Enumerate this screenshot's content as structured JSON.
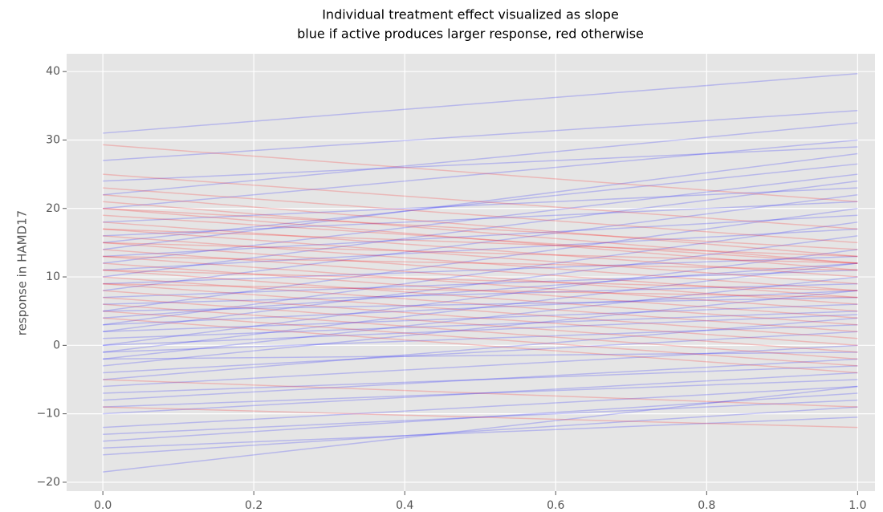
{
  "chart_data": {
    "type": "line",
    "title": [
      "Individual treatment effect visualized as slope",
      "blue if active produces larger response, red otherwise"
    ],
    "ylabel": "response in HAMD17",
    "x": [
      0,
      1
    ],
    "xlim": [
      -0.048,
      1.023
    ],
    "ylim": [
      -21.3,
      42.6
    ],
    "xticks": [
      {
        "value": 0,
        "label": "0.0"
      },
      {
        "value": 0.2,
        "label": "0.2"
      },
      {
        "value": 0.4,
        "label": "0.4"
      },
      {
        "value": 0.6,
        "label": "0.6"
      },
      {
        "value": 0.8,
        "label": "0.8"
      },
      {
        "value": 1,
        "label": "1.0"
      }
    ],
    "yticks": [
      {
        "value": -20,
        "label": "−20"
      },
      {
        "value": -10,
        "label": "−10"
      },
      0,
      10,
      20,
      30,
      40
    ],
    "grid": true,
    "alpha": 0.2,
    "series": [
      {
        "color": "#0000ff",
        "values": [
          31,
          39.7
        ]
      },
      {
        "color": "#0000ff",
        "values": [
          27,
          34.3
        ]
      },
      {
        "color": "#0000ff",
        "values": [
          22,
          32.5
        ]
      },
      {
        "color": "#0000ff",
        "values": [
          20,
          30
        ]
      },
      {
        "color": "#0000ff",
        "values": [
          15,
          26.5
        ]
      },
      {
        "color": "#0000ff",
        "values": [
          12,
          25
        ]
      },
      {
        "color": "#0000ff",
        "values": [
          10,
          24
        ]
      },
      {
        "color": "#0000ff",
        "values": [
          8,
          22
        ]
      },
      {
        "color": "#0000ff",
        "values": [
          5,
          20
        ]
      },
      {
        "color": "#0000ff",
        "values": [
          3,
          18
        ]
      },
      {
        "color": "#0000ff",
        "values": [
          2,
          16
        ]
      },
      {
        "color": "#0000ff",
        "values": [
          0,
          14
        ]
      },
      {
        "color": "#0000ff",
        "values": [
          -1,
          12
        ]
      },
      {
        "color": "#0000ff",
        "values": [
          -2,
          10
        ]
      },
      {
        "color": "#0000ff",
        "values": [
          -3,
          8
        ]
      },
      {
        "color": "#0000ff",
        "values": [
          4,
          12
        ]
      },
      {
        "color": "#0000ff",
        "values": [
          6,
          9
        ]
      },
      {
        "color": "#0000ff",
        "values": [
          9,
          13
        ]
      },
      {
        "color": "#0000ff",
        "values": [
          11,
          17
        ]
      },
      {
        "color": "#0000ff",
        "values": [
          13,
          19
        ]
      },
      {
        "color": "#0000ff",
        "values": [
          -5,
          4
        ]
      },
      {
        "color": "#0000ff",
        "values": [
          -4,
          2
        ]
      },
      {
        "color": "#0000ff",
        "values": [
          -6,
          0
        ]
      },
      {
        "color": "#0000ff",
        "values": [
          -8,
          -2
        ]
      },
      {
        "color": "#0000ff",
        "values": [
          -10,
          -4
        ]
      },
      {
        "color": "#0000ff",
        "values": [
          -12,
          -6
        ]
      },
      {
        "color": "#0000ff",
        "values": [
          -14,
          -7
        ]
      },
      {
        "color": "#0000ff",
        "values": [
          -16,
          -9
        ]
      },
      {
        "color": "#0000ff",
        "values": [
          -18.5,
          -6
        ]
      },
      {
        "color": "#0000ff",
        "values": [
          -15,
          -10.5
        ]
      },
      {
        "color": "#0000ff",
        "values": [
          -13,
          -8
        ]
      },
      {
        "color": "#0000ff",
        "values": [
          1,
          5
        ]
      },
      {
        "color": "#0000ff",
        "values": [
          2,
          6
        ]
      },
      {
        "color": "#0000ff",
        "values": [
          7,
          11
        ]
      },
      {
        "color": "#0000ff",
        "values": [
          -1,
          3
        ]
      },
      {
        "color": "#0000ff",
        "values": [
          -2,
          -1
        ]
      },
      {
        "color": "#0000ff",
        "values": [
          3,
          8
        ]
      },
      {
        "color": "#0000ff",
        "values": [
          5,
          7
        ]
      },
      {
        "color": "#0000ff",
        "values": [
          16,
          21
        ]
      },
      {
        "color": "#0000ff",
        "values": [
          18,
          23
        ]
      },
      {
        "color": "#0000ff",
        "values": [
          0,
          4.5
        ]
      },
      {
        "color": "#0000ff",
        "values": [
          -7,
          -3
        ]
      },
      {
        "color": "#0000ff",
        "values": [
          -9,
          -5
        ]
      },
      {
        "color": "#0000ff",
        "values": [
          14,
          28
        ]
      },
      {
        "color": "#0000ff",
        "values": [
          24,
          29
        ]
      },
      {
        "color": "#ff0000",
        "values": [
          29.3,
          21
        ]
      },
      {
        "color": "#ff0000",
        "values": [
          25,
          17
        ]
      },
      {
        "color": "#ff0000",
        "values": [
          23,
          15
        ]
      },
      {
        "color": "#ff0000",
        "values": [
          22,
          13
        ]
      },
      {
        "color": "#ff0000",
        "values": [
          21,
          12
        ]
      },
      {
        "color": "#ff0000",
        "values": [
          20,
          11
        ]
      },
      {
        "color": "#ff0000",
        "values": [
          19,
          12
        ]
      },
      {
        "color": "#ff0000",
        "values": [
          18,
          10
        ]
      },
      {
        "color": "#ff0000",
        "values": [
          17,
          9
        ]
      },
      {
        "color": "#ff0000",
        "values": [
          16,
          8
        ]
      },
      {
        "color": "#ff0000",
        "values": [
          15,
          7
        ]
      },
      {
        "color": "#ff0000",
        "values": [
          14,
          6
        ]
      },
      {
        "color": "#ff0000",
        "values": [
          13,
          5
        ]
      },
      {
        "color": "#ff0000",
        "values": [
          12,
          4
        ]
      },
      {
        "color": "#ff0000",
        "values": [
          11,
          3
        ]
      },
      {
        "color": "#ff0000",
        "values": [
          10,
          2
        ]
      },
      {
        "color": "#ff0000",
        "values": [
          9,
          1
        ]
      },
      {
        "color": "#ff0000",
        "values": [
          8,
          0
        ]
      },
      {
        "color": "#ff0000",
        "values": [
          7,
          -1
        ]
      },
      {
        "color": "#ff0000",
        "values": [
          6,
          -2
        ]
      },
      {
        "color": "#ff0000",
        "values": [
          5,
          -3
        ]
      },
      {
        "color": "#ff0000",
        "values": [
          4,
          -4
        ]
      },
      {
        "color": "#ff0000",
        "values": [
          17,
          13
        ]
      },
      {
        "color": "#ff0000",
        "values": [
          15,
          12
        ]
      },
      {
        "color": "#ff0000",
        "values": [
          13,
          11
        ]
      },
      {
        "color": "#ff0000",
        "values": [
          11,
          8
        ]
      },
      {
        "color": "#ff0000",
        "values": [
          9,
          7
        ]
      },
      {
        "color": "#ff0000",
        "values": [
          -5,
          -9
        ]
      },
      {
        "color": "#ff0000",
        "values": [
          -9,
          -12
        ]
      },
      {
        "color": "#ff0000",
        "values": [
          20,
          14
        ]
      }
    ]
  }
}
